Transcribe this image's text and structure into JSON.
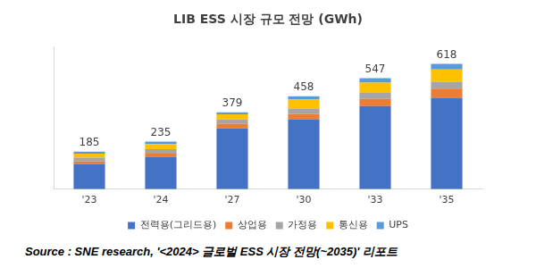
{
  "chart_data": {
    "type": "bar",
    "title": "LIB ESS 시장 규모 전망 (GWh)",
    "categories": [
      "'23",
      "'24",
      "'27",
      "'30",
      "'33",
      "'35"
    ],
    "series": [
      {
        "name": "전력용(그리드용)",
        "color": "#4472c4",
        "values": [
          125,
          160,
          300,
          345,
          410,
          450
        ]
      },
      {
        "name": "상업용",
        "color": "#ed7d31",
        "values": [
          12,
          15,
          22,
          25,
          35,
          45
        ]
      },
      {
        "name": "가정용",
        "color": "#a5a5a5",
        "values": [
          18,
          22,
          22,
          28,
          30,
          35
        ]
      },
      {
        "name": "통신용",
        "color": "#ffc000",
        "values": [
          20,
          25,
          25,
          45,
          50,
          60
        ]
      },
      {
        "name": "UPS",
        "color": "#5b9bd5",
        "values": [
          10,
          13,
          10,
          15,
          22,
          28
        ]
      }
    ],
    "totals": [
      185,
      235,
      379,
      458,
      547,
      618
    ],
    "ylim": [
      0,
      700
    ],
    "stacked": true,
    "grid": false,
    "legend": "bottom",
    "tick_labels": "x",
    "source": "Source : SNE research, '<2024> 글로벌 ESS 시장 전망(~2035)' 리포트"
  }
}
